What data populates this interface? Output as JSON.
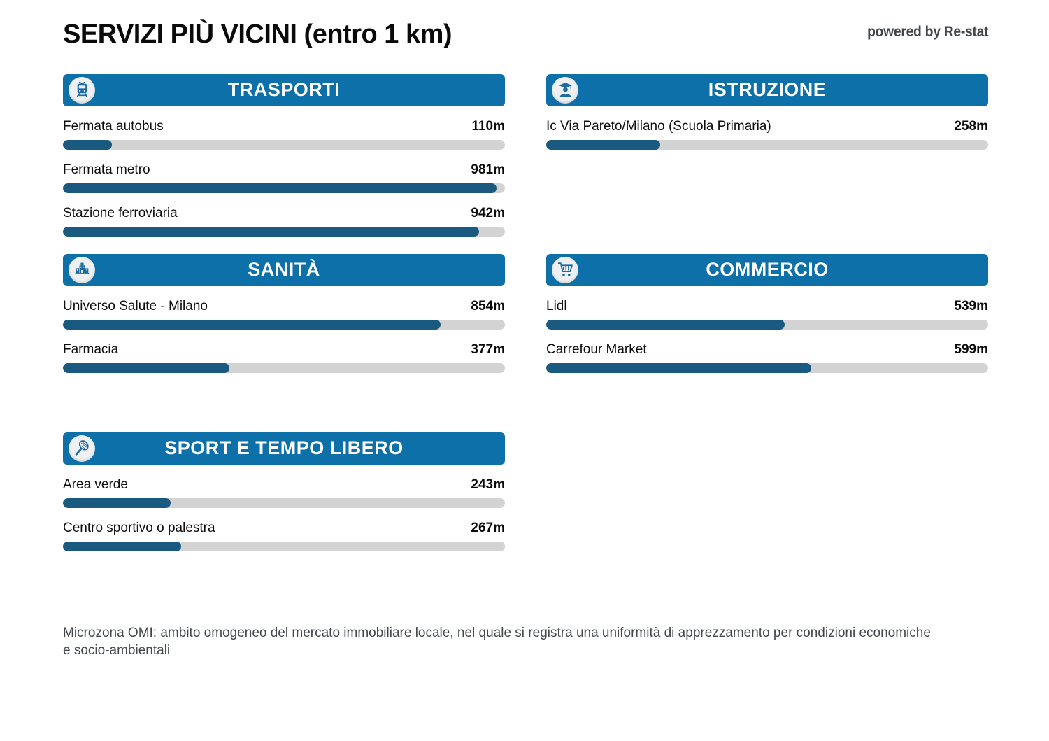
{
  "page": {
    "title": "SERVIZI PIÙ VICINI (entro 1 km)",
    "powered_by": "powered by Re-stat",
    "footnote": "Microzona OMI: ambito omogeneo del mercato immobiliare locale, nel quale si registra una uniformità di apprezzamento per condizioni economiche e socio-ambientali"
  },
  "colors": {
    "section_header_bg": "#0e70a8",
    "bar_fill": "#1b5a80",
    "bar_track": "#d3d3d3",
    "icon_circle_bg": "#eef0f2"
  },
  "chart_data": {
    "type": "bar",
    "orientation": "horizontal",
    "unit": "m",
    "max_m": 1000,
    "xlim": [
      0,
      1000
    ],
    "sections": [
      {
        "title": "TRASPORTI",
        "icon": "train-icon",
        "column": "left",
        "items": [
          {
            "label": "Fermata autobus",
            "value_m": 110,
            "value_label": "110m"
          },
          {
            "label": "Fermata metro",
            "value_m": 981,
            "value_label": "981m"
          },
          {
            "label": "Stazione ferroviaria",
            "value_m": 942,
            "value_label": "942m"
          }
        ]
      },
      {
        "title": "ISTRUZIONE",
        "icon": "student-icon",
        "column": "right",
        "items": [
          {
            "label": "Ic Via Pareto/Milano (Scuola Primaria)",
            "value_m": 258,
            "value_label": "258m"
          }
        ]
      },
      {
        "title": "SANITÀ",
        "icon": "hospital-icon",
        "column": "left",
        "items": [
          {
            "label": "Universo Salute - Milano",
            "value_m": 854,
            "value_label": "854m"
          },
          {
            "label": "Farmacia",
            "value_m": 377,
            "value_label": "377m"
          }
        ]
      },
      {
        "title": "COMMERCIO",
        "icon": "shopping-cart-icon",
        "column": "right",
        "items": [
          {
            "label": "Lidl",
            "value_m": 539,
            "value_label": "539m"
          },
          {
            "label": "Carrefour Market",
            "value_m": 599,
            "value_label": "599m"
          }
        ]
      },
      {
        "title": "SPORT E TEMPO LIBERO",
        "icon": "tennis-racket-icon",
        "column": "left",
        "items": [
          {
            "label": "Area verde",
            "value_m": 243,
            "value_label": "243m"
          },
          {
            "label": "Centro sportivo o palestra",
            "value_m": 267,
            "value_label": "267m"
          }
        ]
      }
    ]
  }
}
